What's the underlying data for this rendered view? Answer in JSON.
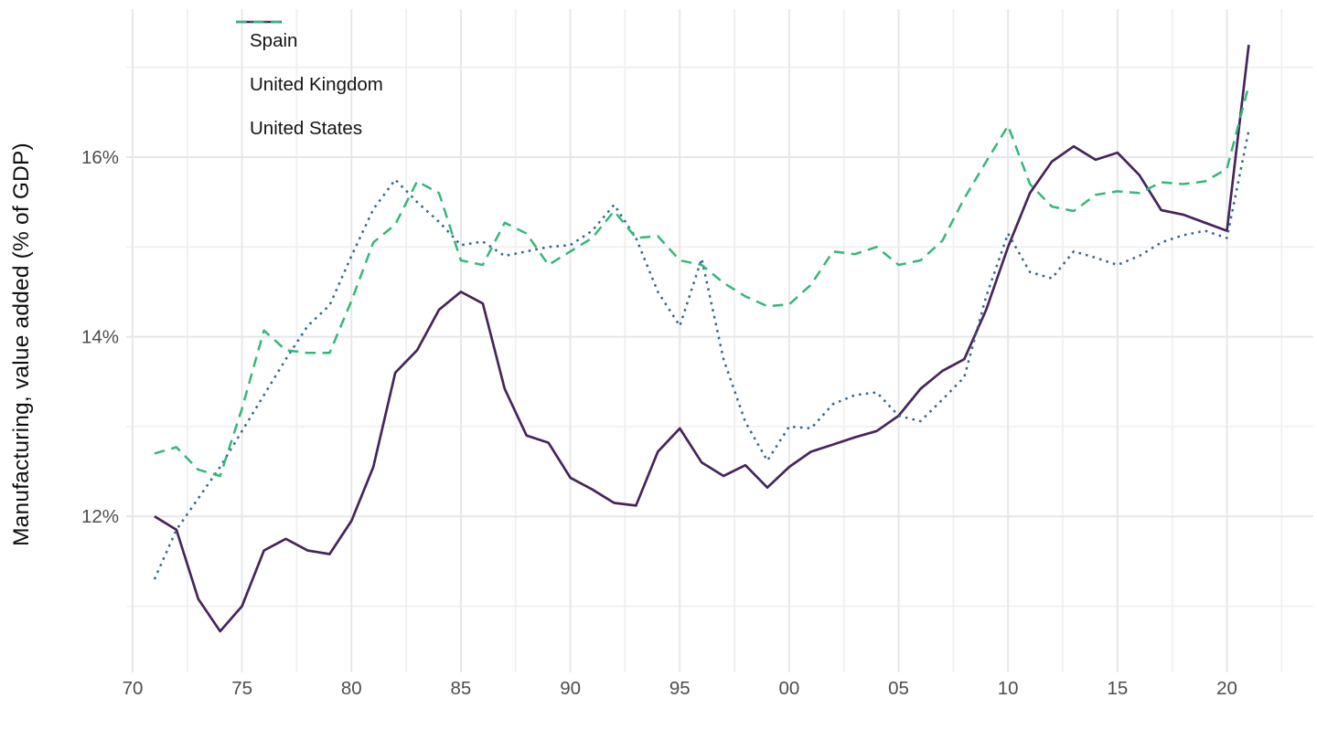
{
  "chart_data": {
    "type": "line",
    "title": "",
    "xlabel": "",
    "ylabel": "Manufacturing, value added (% of GDP)",
    "grid": "major-and-minor",
    "legend_position": "top-left-inside",
    "background": "#ffffff",
    "grid_major_color": "#e7e7e7",
    "grid_minor_color": "#f0f0f0",
    "tick_label_color": "#4d4d4d",
    "axis_title_color": "#0e0e0e",
    "xlim": [
      1969.7,
      2023.9
    ],
    "ylim": [
      10.26,
      17.65
    ],
    "x_ticks": [
      1970,
      1975,
      1980,
      1985,
      1990,
      1995,
      2000,
      2005,
      2010,
      2015,
      2020
    ],
    "x_tick_labels": [
      "70",
      "75",
      "80",
      "85",
      "90",
      "95",
      "00",
      "05",
      "10",
      "15",
      "20"
    ],
    "x_minor_ticks": [
      1972.5,
      1977.5,
      1982.5,
      1987.5,
      1992.5,
      1997.5,
      2002.5,
      2007.5,
      2012.5,
      2017.5,
      2022.5
    ],
    "y_ticks": [
      12,
      14,
      16
    ],
    "y_tick_labels": [
      "12%",
      "14%",
      "16%"
    ],
    "y_minor_ticks": [
      11,
      13,
      15,
      17
    ],
    "x": [
      1971,
      1972,
      1973,
      1974,
      1975,
      1976,
      1977,
      1978,
      1979,
      1980,
      1981,
      1982,
      1983,
      1984,
      1985,
      1986,
      1987,
      1988,
      1989,
      1990,
      1991,
      1992,
      1993,
      1994,
      1995,
      1996,
      1997,
      1998,
      1999,
      2000,
      2001,
      2002,
      2003,
      2004,
      2005,
      2006,
      2007,
      2008,
      2009,
      2010,
      2011,
      2012,
      2013,
      2014,
      2015,
      2016,
      2017,
      2018,
      2019,
      2020,
      2021
    ],
    "series": [
      {
        "name": "Spain",
        "color": "#46245c",
        "dash": "solid",
        "values": [
          12.0,
          11.85,
          11.08,
          10.72,
          11.0,
          11.62,
          11.75,
          11.62,
          11.58,
          11.95,
          12.55,
          13.6,
          13.85,
          14.3,
          14.5,
          14.37,
          13.42,
          12.9,
          12.82,
          12.43,
          12.3,
          12.15,
          12.12,
          12.72,
          12.98,
          12.6,
          12.45,
          12.57,
          12.32,
          12.55,
          12.72,
          12.8,
          12.88,
          12.95,
          13.12,
          13.42,
          13.62,
          13.75,
          14.3,
          15.0,
          15.6,
          15.95,
          16.12,
          15.97,
          16.05,
          15.8,
          15.41,
          15.36,
          15.27,
          15.18,
          17.25
        ]
      },
      {
        "name": "United Kingdom",
        "color": "#31688e",
        "dash": "dotted",
        "values": [
          11.3,
          11.85,
          12.2,
          12.55,
          12.95,
          13.35,
          13.75,
          14.12,
          14.35,
          14.9,
          15.42,
          15.75,
          15.5,
          15.28,
          15.02,
          15.06,
          14.9,
          14.95,
          15.0,
          15.02,
          15.18,
          15.47,
          15.1,
          14.5,
          14.12,
          14.87,
          13.75,
          13.05,
          12.62,
          13.0,
          12.98,
          13.25,
          13.35,
          13.38,
          13.12,
          13.06,
          13.3,
          13.55,
          14.45,
          15.15,
          14.72,
          14.65,
          14.95,
          14.88,
          14.8,
          14.9,
          15.05,
          15.13,
          15.18,
          15.1,
          16.3
        ]
      },
      {
        "name": "United States",
        "color": "#35b779",
        "dash": "dashed",
        "values": [
          12.7,
          12.77,
          12.52,
          12.45,
          13.2,
          14.07,
          13.85,
          13.82,
          13.82,
          14.4,
          15.05,
          15.25,
          15.73,
          15.6,
          14.85,
          14.8,
          15.27,
          15.15,
          14.8,
          14.95,
          15.1,
          15.4,
          15.1,
          15.12,
          14.85,
          14.8,
          14.6,
          14.45,
          14.34,
          14.36,
          14.58,
          14.95,
          14.92,
          15.0,
          14.8,
          14.85,
          15.07,
          15.54,
          15.95,
          16.35,
          15.7,
          15.45,
          15.4,
          15.58,
          15.62,
          15.6,
          15.72,
          15.7,
          15.73,
          15.87,
          16.8
        ]
      }
    ]
  }
}
